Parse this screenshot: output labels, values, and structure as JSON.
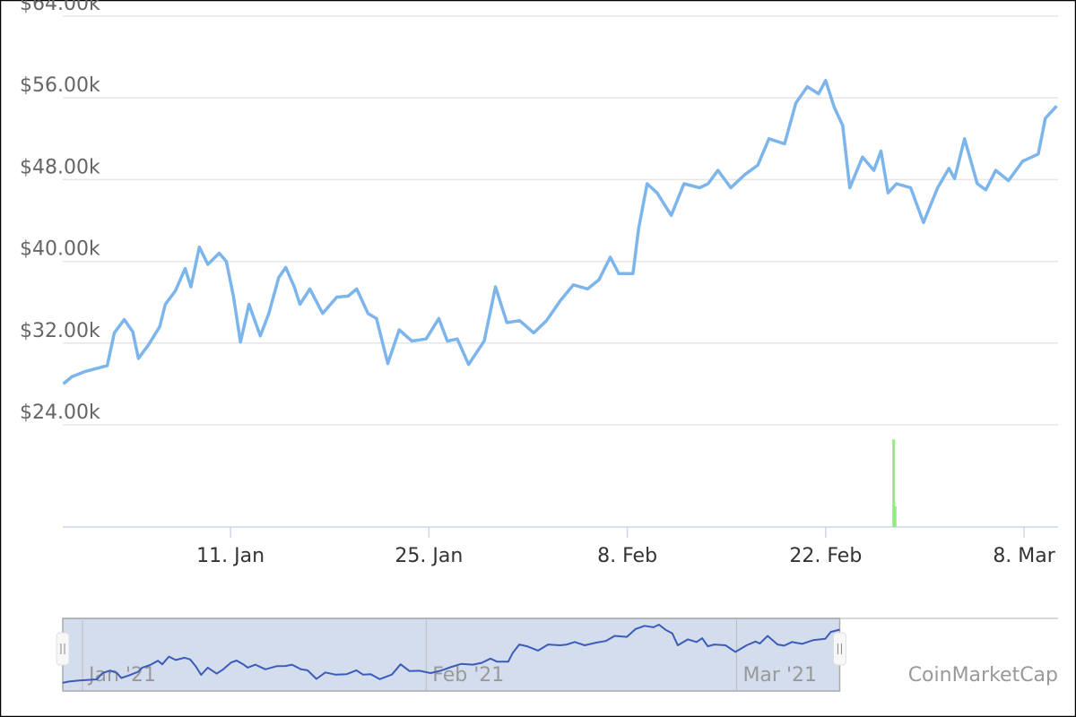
{
  "chart_data": {
    "type": "line",
    "x": [
      -0.8,
      -0.2,
      0.7,
      2.3,
      2.8,
      3.5,
      4.1,
      4.5,
      5.2,
      6.0,
      6.4,
      7.1,
      7.8,
      8.2,
      8.8,
      9.4,
      10.2,
      10.7,
      11.2,
      11.7,
      12.3,
      13.1,
      13.7,
      14.4,
      14.9,
      15.5,
      15.9,
      16.6,
      17.5,
      18.5,
      19.3,
      19.9,
      20.7,
      21.3,
      22.1,
      22.9,
      23.8,
      24.8,
      25.7,
      26.3,
      27.0,
      27.8,
      28.9,
      29.7,
      30.5,
      31.4,
      32.4,
      33.3,
      34.3,
      35.2,
      36.2,
      37.0,
      37.8,
      38.4,
      39.4,
      39.8,
      40.4,
      41.1,
      42.1,
      43.0,
      44.1,
      44.7,
      45.4,
      46.3,
      47.3,
      48.2,
      49.0,
      50.1,
      50.9,
      51.7,
      52.5,
      53.0,
      53.6,
      54.2,
      54.7,
      55.6,
      56.4,
      56.9,
      57.4,
      58.0,
      59.0,
      59.9,
      60.9,
      61.7,
      62.1,
      62.8,
      63.7,
      64.3,
      65.0,
      65.9,
      66.9,
      68.0,
      68.5,
      69.3
    ],
    "series": [
      {
        "color": "#7cb5ec",
        "values": [
          28000,
          28700,
          29200,
          29800,
          33000,
          34300,
          33100,
          30500,
          31800,
          33600,
          35800,
          37100,
          39300,
          37500,
          41400,
          39700,
          40800,
          40000,
          36600,
          32100,
          35800,
          32700,
          34900,
          38400,
          39400,
          37500,
          35800,
          37300,
          34900,
          36500,
          36600,
          37300,
          34900,
          34400,
          30000,
          33300,
          32200,
          32400,
          34400,
          32200,
          32400,
          29900,
          32200,
          37500,
          34000,
          34200,
          33000,
          34200,
          36200,
          37700,
          37300,
          38200,
          40400,
          38800,
          38800,
          43200,
          47600,
          46700,
          44500,
          47600,
          47200,
          47600,
          48900,
          47200,
          48500,
          49400,
          52000,
          51500,
          55500,
          57100,
          56400,
          57700,
          55100,
          53300,
          47200,
          50200,
          48900,
          50800,
          46700,
          47600,
          47200,
          43800,
          47200,
          49100,
          48100,
          52000,
          47600,
          47000,
          48900,
          47900,
          49800,
          50500,
          54000,
          55200
        ]
      }
    ],
    "volume": {
      "color": "#90ed7d",
      "x": [
        57.8,
        57.9
      ],
      "values": [
        85,
        20
      ],
      "axis": "y2"
    },
    "y2lim": [
      0,
      100
    ],
    "xlim": [
      -0.84,
      69.4
    ],
    "xticks": [
      {
        "value": 11,
        "label": "11. Jan"
      },
      {
        "value": 25,
        "label": "25. Jan"
      },
      {
        "value": 39,
        "label": "8. Feb"
      },
      {
        "value": 53,
        "label": "22. Feb"
      },
      {
        "value": 67,
        "label": "8. Mar"
      }
    ],
    "ylim": [
      14000,
      64000
    ],
    "yticks": [
      {
        "value": 24000,
        "label": "$24.00k"
      },
      {
        "value": 32000,
        "label": "$32.00k"
      },
      {
        "value": 40000,
        "label": "$40.00k"
      },
      {
        "value": 48000,
        "label": "$48.00k"
      },
      {
        "value": 56000,
        "label": "$56.00k"
      },
      {
        "value": 64000,
        "label": "$64.00k"
      }
    ],
    "grid": true,
    "navigator": {
      "xlim": [
        -0.78,
        89
      ],
      "ylim": [
        24300,
        60000
      ],
      "range": [
        -0.78,
        69.3
      ],
      "color": "#3b5cb8",
      "xticks": [
        {
          "value": 1,
          "label": "Jan '21"
        },
        {
          "value": 32,
          "label": "Feb '21"
        },
        {
          "value": 60,
          "label": "Mar '21"
        }
      ]
    },
    "credits": "CoinMarketCap"
  }
}
